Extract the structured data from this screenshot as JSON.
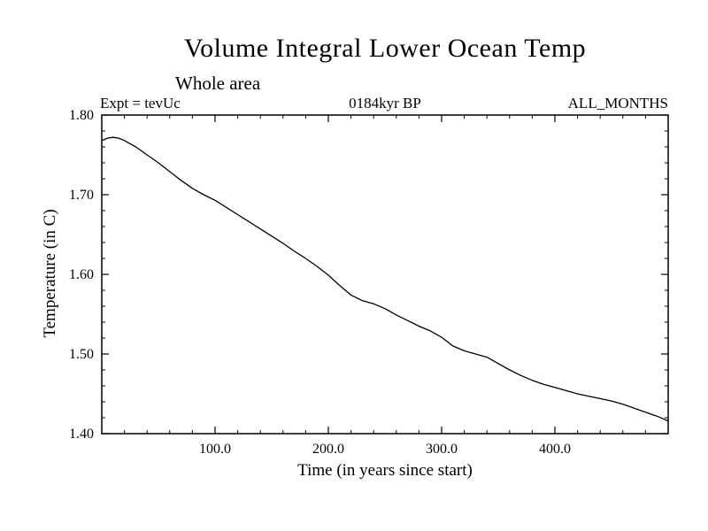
{
  "header": {
    "title": "Volume Integral Lower Ocean Temp",
    "subtitle": "Whole area",
    "expt_label": "Expt = tevUc",
    "period_label": "0184kyr BP",
    "months_label": "ALL_MONTHS"
  },
  "chart_data": {
    "type": "line",
    "title": "Volume Integral Lower Ocean Temp",
    "subtitle": "Whole area",
    "annotations": [
      "Expt = tevUc",
      "0184kyr BP",
      "ALL_MONTHS"
    ],
    "xlabel": "Time (in years since start)",
    "ylabel": "Temperature (in C)",
    "xlim": [
      0,
      500
    ],
    "ylim": [
      1.4,
      1.8
    ],
    "xticks": [
      100,
      200,
      300,
      400
    ],
    "xtick_labels": [
      "100.0",
      "200.0",
      "300.0",
      "400.0"
    ],
    "yticks": [
      1.4,
      1.5,
      1.6,
      1.7,
      1.8
    ],
    "ytick_labels": [
      "1.40",
      "1.50",
      "1.60",
      "1.70",
      "1.80"
    ],
    "x_minor_step": 20,
    "y_minor_step": 0.02,
    "grid": false,
    "legend": "none",
    "line_color": "#000000",
    "background": "#ffffff",
    "series": [
      {
        "name": "volume-integral-lower-ocean-temp",
        "x": [
          0,
          5,
          10,
          15,
          20,
          30,
          40,
          50,
          60,
          70,
          80,
          90,
          100,
          110,
          120,
          130,
          140,
          150,
          160,
          170,
          180,
          190,
          200,
          210,
          220,
          230,
          240,
          250,
          260,
          270,
          280,
          290,
          300,
          310,
          320,
          330,
          340,
          350,
          360,
          370,
          380,
          390,
          400,
          410,
          420,
          430,
          440,
          450,
          460,
          470,
          480,
          490,
          500
        ],
        "y": [
          1.768,
          1.771,
          1.772,
          1.771,
          1.768,
          1.76,
          1.75,
          1.74,
          1.729,
          1.718,
          1.708,
          1.7,
          1.693,
          1.684,
          1.675,
          1.666,
          1.657,
          1.648,
          1.639,
          1.629,
          1.62,
          1.61,
          1.599,
          1.586,
          1.574,
          1.567,
          1.563,
          1.557,
          1.549,
          1.542,
          1.535,
          1.529,
          1.521,
          1.51,
          1.504,
          1.5,
          1.496,
          1.488,
          1.48,
          1.473,
          1.467,
          1.462,
          1.458,
          1.454,
          1.45,
          1.447,
          1.444,
          1.441,
          1.437,
          1.432,
          1.427,
          1.422,
          1.416
        ]
      }
    ]
  }
}
